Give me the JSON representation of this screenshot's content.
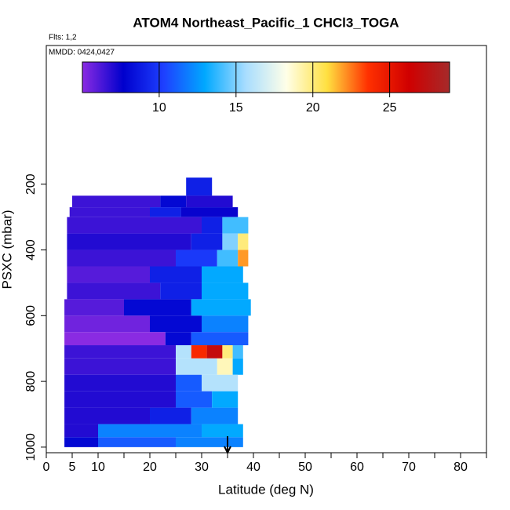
{
  "chart_data": {
    "type": "heatmap",
    "title": "ATOM4 Northeast_Pacific_1 CHCl3_TOGA",
    "flights": "Flts: 1,2",
    "dates": "MMDD: 0424,0427",
    "xlabel": "Latitude (deg N)",
    "ylabel": "PSXC (mbar)",
    "xlim": [
      0,
      85
    ],
    "xticks": [
      0,
      5,
      10,
      20,
      30,
      40,
      50,
      60,
      70,
      80
    ],
    "xminorticks": [
      15,
      25,
      35,
      45,
      55,
      65,
      75,
      85
    ],
    "ylim": [
      1017,
      -222
    ],
    "yticks": [
      200,
      400,
      600,
      800,
      1000
    ],
    "clim": [
      5,
      28.9
    ],
    "cticks": [
      10,
      15,
      20,
      25
    ],
    "colormap": [
      "#8a2be2",
      "#0000cd",
      "#1e40ff",
      "#00a8ff",
      "#a8ddff",
      "#ffffe8",
      "#ffe040",
      "#ff3000",
      "#d00000",
      "#a52a2a"
    ],
    "arrow_lat": 35,
    "rows": [
      {
        "p": [
          180,
          235
        ],
        "segments": [
          {
            "lat": [
              27,
              32
            ],
            "value": 9
          }
        ]
      },
      {
        "p": [
          235,
          270
        ],
        "segments": [
          {
            "lat": [
              5,
              22
            ],
            "value": 6.5
          },
          {
            "lat": [
              22,
              27
            ],
            "value": 8
          },
          {
            "lat": [
              27,
              36
            ],
            "value": 7
          }
        ]
      },
      {
        "p": [
          270,
          300
        ],
        "segments": [
          {
            "lat": [
              4.5,
              20
            ],
            "value": 6.5
          },
          {
            "lat": [
              20,
              26
            ],
            "value": 9
          },
          {
            "lat": [
              26,
              37
            ],
            "value": 7.5
          }
        ]
      },
      {
        "p": [
          300,
          350
        ],
        "segments": [
          {
            "lat": [
              4,
              30
            ],
            "value": 6.5
          },
          {
            "lat": [
              30,
              34
            ],
            "value": 9
          },
          {
            "lat": [
              34,
              39
            ],
            "value": 14
          }
        ]
      },
      {
        "p": [
          350,
          400
        ],
        "segments": [
          {
            "lat": [
              4,
              28
            ],
            "value": 7
          },
          {
            "lat": [
              28,
              34
            ],
            "value": 9
          },
          {
            "lat": [
              34,
              37
            ],
            "value": 15
          },
          {
            "lat": [
              37,
              39
            ],
            "value": 20
          }
        ]
      },
      {
        "p": [
          400,
          450
        ],
        "segments": [
          {
            "lat": [
              4,
              25
            ],
            "value": 6.5
          },
          {
            "lat": [
              25,
              33
            ],
            "value": 10
          },
          {
            "lat": [
              33,
              37
            ],
            "value": 14
          },
          {
            "lat": [
              37,
              39
            ],
            "value": 22
          }
        ]
      },
      {
        "p": [
          450,
          500
        ],
        "segments": [
          {
            "lat": [
              4,
              20
            ],
            "value": 6
          },
          {
            "lat": [
              20,
              30
            ],
            "value": 9
          },
          {
            "lat": [
              30,
              38
            ],
            "value": 13
          }
        ]
      },
      {
        "p": [
          500,
          550
        ],
        "segments": [
          {
            "lat": [
              4,
              22
            ],
            "value": 6.5
          },
          {
            "lat": [
              22,
              30
            ],
            "value": 9
          },
          {
            "lat": [
              30,
              39
            ],
            "value": 13
          }
        ]
      },
      {
        "p": [
          550,
          600
        ],
        "segments": [
          {
            "lat": [
              3.5,
              15
            ],
            "value": 6
          },
          {
            "lat": [
              15,
              28
            ],
            "value": 8
          },
          {
            "lat": [
              28,
              39.5
            ],
            "value": 13
          }
        ]
      },
      {
        "p": [
          600,
          650
        ],
        "segments": [
          {
            "lat": [
              3.5,
              20
            ],
            "value": 5.5
          },
          {
            "lat": [
              20,
              30
            ],
            "value": 8
          },
          {
            "lat": [
              30,
              39
            ],
            "value": 12
          }
        ]
      },
      {
        "p": [
          650,
          690
        ],
        "segments": [
          {
            "lat": [
              3.5,
              23
            ],
            "value": 5
          },
          {
            "lat": [
              23,
              28
            ],
            "value": 8
          },
          {
            "lat": [
              28,
              39
            ],
            "value": 11
          }
        ]
      },
      {
        "p": [
          690,
          730
        ],
        "segments": [
          {
            "lat": [
              3.5,
              25
            ],
            "value": 6.5
          },
          {
            "lat": [
              25,
              28
            ],
            "value": 16
          },
          {
            "lat": [
              28,
              31
            ],
            "value": 24
          },
          {
            "lat": [
              31,
              34
            ],
            "value": 27
          },
          {
            "lat": [
              34,
              36
            ],
            "value": 20
          },
          {
            "lat": [
              36,
              38
            ],
            "value": 14
          }
        ]
      },
      {
        "p": [
          730,
          780
        ],
        "segments": [
          {
            "lat": [
              3.5,
              25
            ],
            "value": 6.5
          },
          {
            "lat": [
              25,
              33
            ],
            "value": 16
          },
          {
            "lat": [
              33,
              36
            ],
            "value": 19
          },
          {
            "lat": [
              36,
              38
            ],
            "value": 13
          }
        ]
      },
      {
        "p": [
          780,
          830
        ],
        "segments": [
          {
            "lat": [
              3.5,
              25
            ],
            "value": 7
          },
          {
            "lat": [
              25,
              30
            ],
            "value": 11
          },
          {
            "lat": [
              30,
              37
            ],
            "value": 16
          }
        ]
      },
      {
        "p": [
          830,
          880
        ],
        "segments": [
          {
            "lat": [
              3.5,
              25
            ],
            "value": 7
          },
          {
            "lat": [
              25,
              32
            ],
            "value": 11
          },
          {
            "lat": [
              32,
              37
            ],
            "value": 13
          }
        ]
      },
      {
        "p": [
          880,
          930
        ],
        "segments": [
          {
            "lat": [
              3.5,
              20
            ],
            "value": 7
          },
          {
            "lat": [
              20,
              28
            ],
            "value": 9
          },
          {
            "lat": [
              28,
              37
            ],
            "value": 12
          }
        ]
      },
      {
        "p": [
          930,
          970
        ],
        "segments": [
          {
            "lat": [
              3.5,
              10
            ],
            "value": 7
          },
          {
            "lat": [
              10,
              30
            ],
            "value": 12
          },
          {
            "lat": [
              30,
              38
            ],
            "value": 13
          }
        ]
      },
      {
        "p": [
          970,
          1000
        ],
        "segments": [
          {
            "lat": [
              3.5,
              10
            ],
            "value": 8
          },
          {
            "lat": [
              10,
              25
            ],
            "value": 11
          },
          {
            "lat": [
              25,
              38
            ],
            "value": 12
          }
        ]
      }
    ]
  }
}
